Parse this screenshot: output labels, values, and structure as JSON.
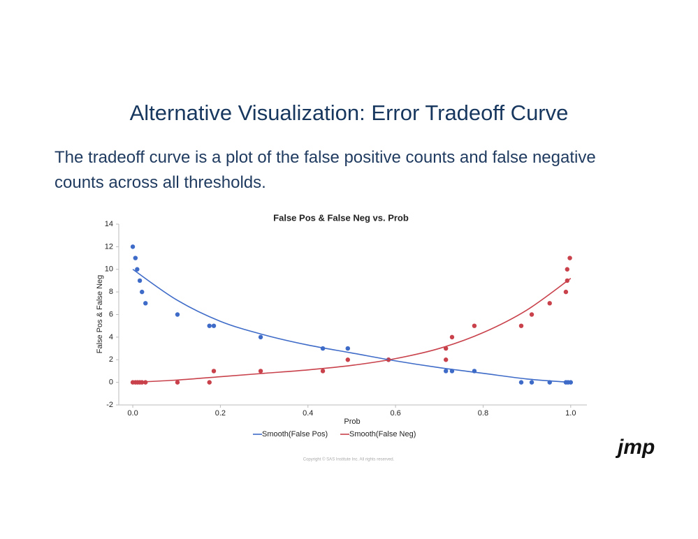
{
  "slide": {
    "title": "Alternative Visualization: Error Tradeoff Curve",
    "body": "The tradeoff curve is a plot of the false positive counts and false negative counts across all thresholds.",
    "copyright": "Copyright © SAS Institute Inc. All rights reserved.",
    "logo": "jmp"
  },
  "chart_data": {
    "type": "scatter",
    "title": "False Pos & False Neg vs. Prob",
    "xlabel": "Prob",
    "ylabel": "False Pos & False Neg",
    "xlim": [
      -0.032,
      1.037
    ],
    "ylim": [
      -2,
      14
    ],
    "xticks": [
      {
        "value": 0,
        "label": "0.0"
      },
      0.2,
      0.4,
      0.6,
      0.8,
      {
        "value": 1,
        "label": "1.0"
      }
    ],
    "yticks": [
      -2,
      0,
      2,
      4,
      6,
      8,
      10,
      12,
      14
    ],
    "series": [
      {
        "name": "Smooth(False Pos)",
        "color": "#3e6bc8",
        "x": [
          0,
          0.1,
          0.2,
          0.3,
          0.4,
          0.5,
          0.6,
          0.7,
          0.8,
          0.9,
          1
        ],
        "values": [
          10,
          7.3,
          5.4,
          4.2,
          3.3,
          2.6,
          1.9,
          1.3,
          0.8,
          0.3,
          0
        ]
      },
      {
        "name": "Smooth(False Neg)",
        "color": "#c8414b",
        "x": [
          0,
          0.1,
          0.2,
          0.3,
          0.4,
          0.5,
          0.6,
          0.7,
          0.8,
          0.9,
          1
        ],
        "values": [
          0,
          0.2,
          0.5,
          0.8,
          1.1,
          1.5,
          2.1,
          3.0,
          4.4,
          6.4,
          9.2
        ]
      }
    ],
    "points": [
      {
        "color": "#3e6bc8",
        "x": [
          0,
          0.006,
          0.01,
          0.016,
          0.021,
          0.029,
          0.102,
          0.175,
          0.185,
          0.292,
          0.434,
          0.491,
          0.584,
          0.715,
          0.729,
          0.78,
          0.887,
          0.911,
          0.952,
          0.989,
          0.994,
          1
        ],
        "values": [
          12,
          11,
          10,
          9,
          8,
          7,
          6,
          5,
          5,
          4,
          3,
          3,
          2,
          1,
          1,
          1,
          0,
          0,
          0,
          0,
          0,
          0
        ]
      },
      {
        "color": "#c8414b",
        "x": [
          0,
          0.006,
          0.011,
          0.016,
          0.021,
          0.029,
          0.102,
          0.175,
          0.185,
          0.292,
          0.434,
          0.491,
          0.584,
          0.715,
          0.715,
          0.729,
          0.78,
          0.887,
          0.911,
          0.952,
          0.989,
          0.992,
          0.992,
          0.998
        ],
        "values": [
          0,
          0,
          0,
          0,
          0,
          0,
          0,
          0,
          1,
          1,
          1,
          2,
          2,
          2,
          3,
          4,
          5,
          5,
          6,
          7,
          8,
          9,
          10,
          11
        ]
      }
    ]
  }
}
